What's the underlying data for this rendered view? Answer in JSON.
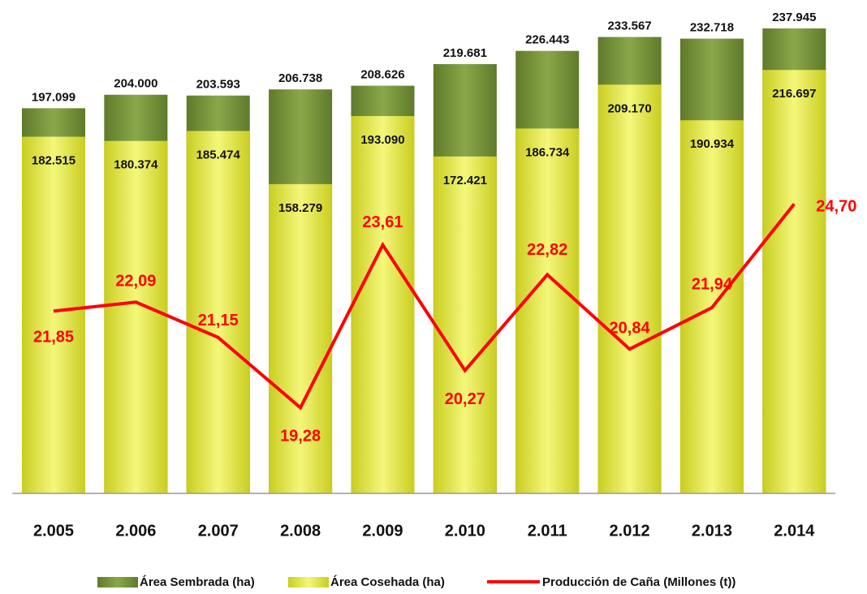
{
  "chart_data": {
    "type": "bar",
    "categories": [
      "2.005",
      "2.006",
      "2.007",
      "2.008",
      "2.009",
      "2.010",
      "2.011",
      "2.012",
      "2.013",
      "2.014"
    ],
    "series": [
      {
        "name": "Área Sembrada (ha)",
        "color": "#76923c",
        "values": [
          197099,
          204000,
          203593,
          206738,
          208626,
          219681,
          226443,
          233567,
          232718,
          237945
        ],
        "value_labels": [
          "197.099",
          "204.000",
          "203.593",
          "206.738",
          "208.626",
          "219.681",
          "226.443",
          "233.567",
          "232.718",
          "237.945"
        ]
      },
      {
        "name": "Área Cosehada (ha)",
        "color": "#e8ec3c",
        "values": [
          182515,
          180374,
          185474,
          158279,
          193090,
          172421,
          186734,
          209170,
          190934,
          216697
        ],
        "value_labels": [
          "182.515",
          "180.374",
          "185.474",
          "158.279",
          "193.090",
          "172.421",
          "186.734",
          "209.170",
          "190.934",
          "216.697"
        ]
      },
      {
        "name": "Producción de Caña (Millones (t))",
        "color": "#ff0000",
        "type": "line",
        "axis": "y2",
        "values": [
          21.85,
          22.09,
          21.15,
          19.28,
          23.61,
          20.27,
          22.82,
          20.84,
          21.94,
          24.7
        ],
        "value_labels": [
          "21,85",
          "22,09",
          "21,15",
          "19,28",
          "23,61",
          "20,27",
          "22,82",
          "20,84",
          "21,94",
          "24,70"
        ]
      }
    ],
    "ylim": [
      0,
      250000
    ],
    "y2lim": [
      17,
      30
    ]
  }
}
